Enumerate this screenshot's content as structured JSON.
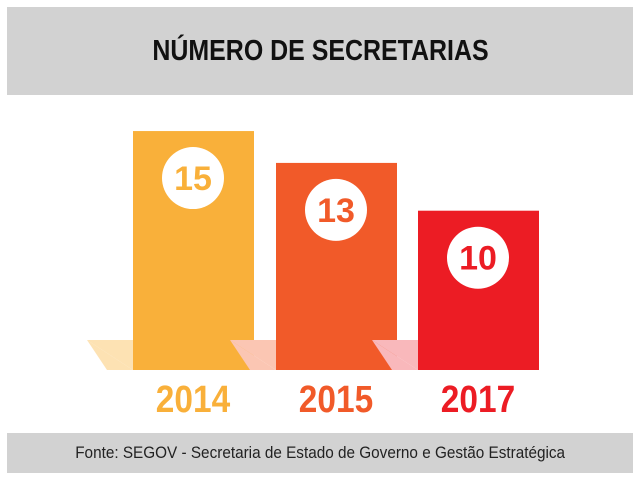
{
  "chart_data": {
    "type": "bar",
    "title": "NÚMERO DE SECRETARIAS",
    "categories": [
      "2014",
      "2015",
      "2017"
    ],
    "values": [
      15,
      13,
      10
    ],
    "colors": [
      "#f9b03a",
      "#f15a29",
      "#ec1c24"
    ],
    "shadow_colors": [
      "#fde2b3",
      "#fbc6b3",
      "#f9b8bb"
    ],
    "value_label_color": "#ffffff",
    "xlabel": "",
    "ylabel": "",
    "grid": false,
    "legend": "none"
  },
  "footer": {
    "source": "Fonte: SEGOV - Secretaria de Estado de Governo e Gestão Estratégica"
  }
}
